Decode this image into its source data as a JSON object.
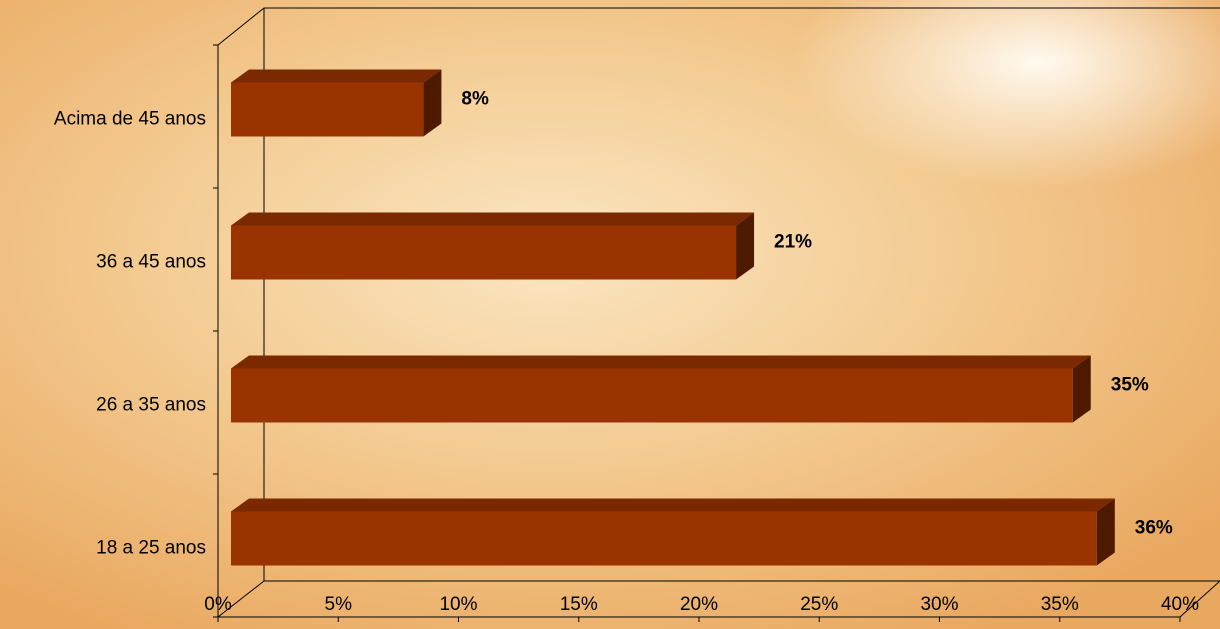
{
  "chart_data": {
    "type": "bar3d",
    "categories": [
      "18 a 25 anos",
      "26 a 35 anos",
      "36 a 45 anos",
      "Acima de 45 anos"
    ],
    "values": [
      36,
      35,
      21,
      8
    ],
    "value_labels": [
      "36%",
      "35%",
      "21%",
      "8%"
    ],
    "color": "#993300",
    "xlim": [
      0,
      40
    ],
    "xticks": [
      {
        "value": 0,
        "label": "0%"
      },
      {
        "value": 5,
        "label": "5%"
      },
      {
        "value": 10,
        "label": "10%"
      },
      {
        "value": 15,
        "label": "15%"
      },
      {
        "value": 20,
        "label": "20%"
      },
      {
        "value": 25,
        "label": "25%"
      },
      {
        "value": 30,
        "label": "30%"
      },
      {
        "value": 35,
        "label": "35%"
      },
      {
        "value": 40,
        "label": "40%"
      }
    ]
  }
}
